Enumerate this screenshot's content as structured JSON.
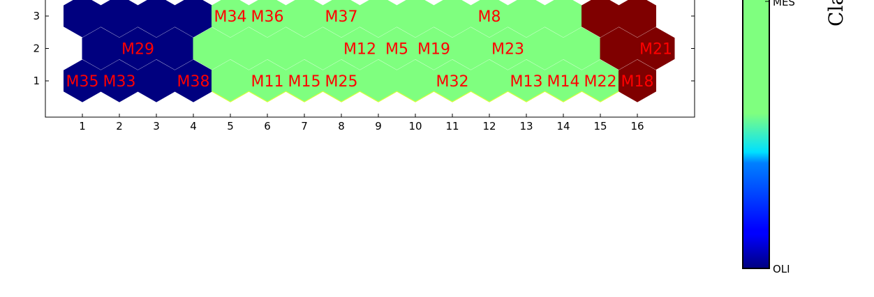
{
  "chart_data": {
    "type": "heatmap",
    "subtype": "hexagonal-som-map",
    "x_ticks": [
      "1",
      "2",
      "3",
      "4",
      "5",
      "6",
      "7",
      "8",
      "9",
      "10",
      "11",
      "12",
      "13",
      "14",
      "15",
      "16"
    ],
    "y_ticks": [
      "1",
      "2",
      "3"
    ],
    "x_ticks_values": [
      1,
      2,
      3,
      4,
      5,
      6,
      7,
      8,
      9,
      10,
      11,
      12,
      13,
      14,
      15,
      16
    ],
    "y_ticks_values": [
      1,
      2,
      3
    ],
    "xlim": [
      0,
      17.5
    ],
    "ylim": [
      0.05,
      3.6
    ],
    "grid": false,
    "class_colors": {
      "OLI": "#00007f",
      "MES": "#7fff7f",
      "third": "#7f0000"
    },
    "label_color": "#ff0000",
    "cells": [
      {
        "col": 1,
        "row": 1,
        "class": "OLI"
      },
      {
        "col": 2,
        "row": 1,
        "class": "OLI"
      },
      {
        "col": 3,
        "row": 1,
        "class": "OLI"
      },
      {
        "col": 4,
        "row": 1,
        "class": "OLI"
      },
      {
        "col": 5,
        "row": 1,
        "class": "MES"
      },
      {
        "col": 6,
        "row": 1,
        "class": "MES"
      },
      {
        "col": 7,
        "row": 1,
        "class": "MES"
      },
      {
        "col": 8,
        "row": 1,
        "class": "MES"
      },
      {
        "col": 9,
        "row": 1,
        "class": "MES"
      },
      {
        "col": 10,
        "row": 1,
        "class": "MES"
      },
      {
        "col": 11,
        "row": 1,
        "class": "MES"
      },
      {
        "col": 12,
        "row": 1,
        "class": "MES"
      },
      {
        "col": 13,
        "row": 1,
        "class": "MES"
      },
      {
        "col": 14,
        "row": 1,
        "class": "MES"
      },
      {
        "col": 15,
        "row": 1,
        "class": "MES"
      },
      {
        "col": 16,
        "row": 1,
        "class": "third"
      },
      {
        "col": 1.5,
        "row": 2,
        "class": "OLI"
      },
      {
        "col": 2.5,
        "row": 2,
        "class": "OLI"
      },
      {
        "col": 3.5,
        "row": 2,
        "class": "OLI"
      },
      {
        "col": 4.5,
        "row": 2,
        "class": "MES"
      },
      {
        "col": 5.5,
        "row": 2,
        "class": "MES"
      },
      {
        "col": 6.5,
        "row": 2,
        "class": "MES"
      },
      {
        "col": 7.5,
        "row": 2,
        "class": "MES"
      },
      {
        "col": 8.5,
        "row": 2,
        "class": "MES"
      },
      {
        "col": 9.5,
        "row": 2,
        "class": "MES"
      },
      {
        "col": 10.5,
        "row": 2,
        "class": "MES"
      },
      {
        "col": 11.5,
        "row": 2,
        "class": "MES"
      },
      {
        "col": 12.5,
        "row": 2,
        "class": "MES"
      },
      {
        "col": 13.5,
        "row": 2,
        "class": "MES"
      },
      {
        "col": 14.5,
        "row": 2,
        "class": "MES"
      },
      {
        "col": 15.5,
        "row": 2,
        "class": "third"
      },
      {
        "col": 16.5,
        "row": 2,
        "class": "third"
      },
      {
        "col": 1,
        "row": 3,
        "class": "OLI"
      },
      {
        "col": 2,
        "row": 3,
        "class": "OLI"
      },
      {
        "col": 3,
        "row": 3,
        "class": "OLI"
      },
      {
        "col": 4,
        "row": 3,
        "class": "OLI"
      },
      {
        "col": 5,
        "row": 3,
        "class": "MES"
      },
      {
        "col": 6,
        "row": 3,
        "class": "MES"
      },
      {
        "col": 7,
        "row": 3,
        "class": "MES"
      },
      {
        "col": 8,
        "row": 3,
        "class": "MES"
      },
      {
        "col": 9,
        "row": 3,
        "class": "MES"
      },
      {
        "col": 10,
        "row": 3,
        "class": "MES"
      },
      {
        "col": 11,
        "row": 3,
        "class": "MES"
      },
      {
        "col": 12,
        "row": 3,
        "class": "MES"
      },
      {
        "col": 13,
        "row": 3,
        "class": "MES"
      },
      {
        "col": 14,
        "row": 3,
        "class": "MES"
      },
      {
        "col": 15,
        "row": 3,
        "class": "third"
      },
      {
        "col": 16,
        "row": 3,
        "class": "third"
      }
    ],
    "annotations": [
      {
        "text": "M35",
        "col": 1,
        "row": 1
      },
      {
        "text": "M33",
        "col": 2,
        "row": 1
      },
      {
        "text": "M38",
        "col": 4,
        "row": 1
      },
      {
        "text": "M11",
        "col": 6,
        "row": 1
      },
      {
        "text": "M15",
        "col": 7,
        "row": 1
      },
      {
        "text": "M25",
        "col": 8,
        "row": 1
      },
      {
        "text": "M32",
        "col": 11,
        "row": 1
      },
      {
        "text": "M13",
        "col": 13,
        "row": 1
      },
      {
        "text": "M14",
        "col": 14,
        "row": 1
      },
      {
        "text": "M22",
        "col": 15,
        "row": 1
      },
      {
        "text": "M18",
        "col": 16,
        "row": 1
      },
      {
        "text": "M29",
        "col": 2.5,
        "row": 2
      },
      {
        "text": "M12",
        "col": 8.5,
        "row": 2
      },
      {
        "text": "M5",
        "col": 9.5,
        "row": 2
      },
      {
        "text": "M19",
        "col": 10.5,
        "row": 2
      },
      {
        "text": "M23",
        "col": 12.5,
        "row": 2
      },
      {
        "text": "M21",
        "col": 16.5,
        "row": 2
      },
      {
        "text": "M34",
        "col": 5,
        "row": 3
      },
      {
        "text": "M36",
        "col": 6,
        "row": 3
      },
      {
        "text": "M37",
        "col": 8,
        "row": 3
      },
      {
        "text": "M8",
        "col": 12,
        "row": 3
      }
    ],
    "colorbar": {
      "colormap": "jet",
      "tick_labels": [
        "OLI",
        "MES"
      ],
      "tick_values": [
        0,
        0.5
      ],
      "label": "Cla"
    }
  }
}
